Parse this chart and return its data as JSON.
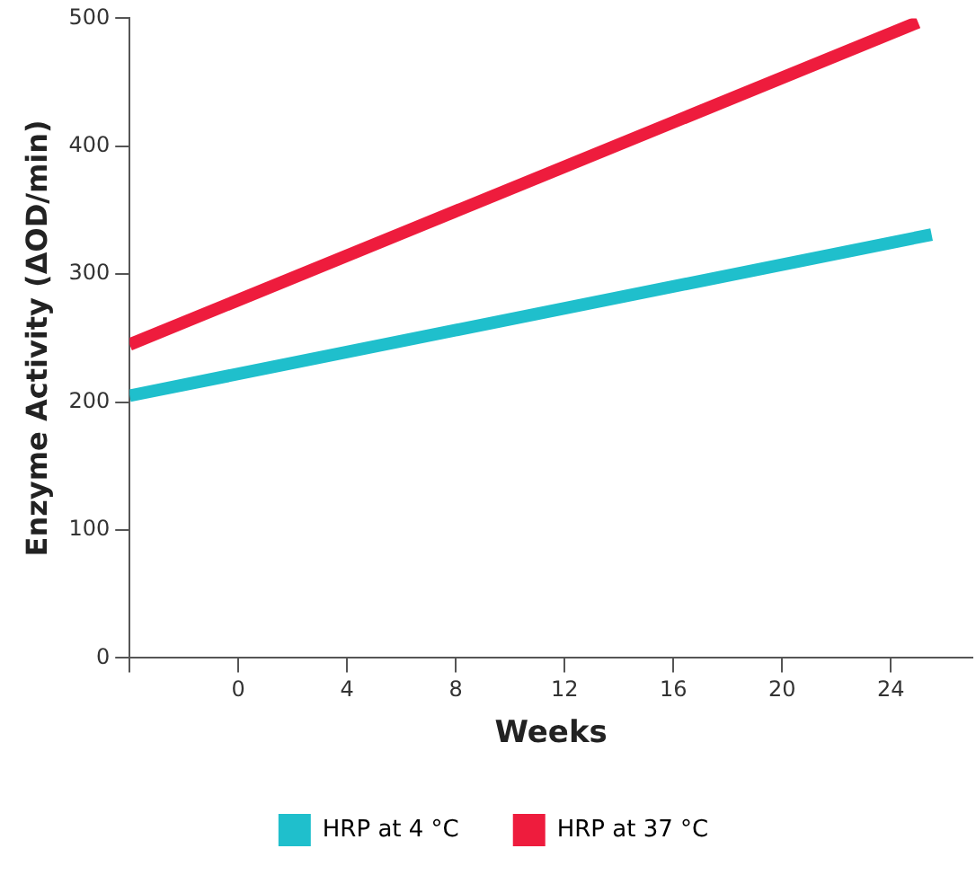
{
  "chart_data": {
    "type": "line",
    "xlabel": "Weeks",
    "ylabel": "Enzyme Activity (ΔOD/min)",
    "xlim": [
      -4,
      27
    ],
    "xticks": [
      {
        "value": -4,
        "label": null
      },
      0,
      4,
      8,
      12,
      16,
      20,
      24
    ],
    "ylim": [
      0,
      500
    ],
    "yticks": [
      0,
      100,
      200,
      300,
      400,
      500
    ],
    "grid": false,
    "legend": "bottom",
    "marker": "none",
    "line_style": "solid",
    "series": [
      {
        "name": "HRP at 4 °C",
        "color": "#1fbfcc",
        "x": [
          -4,
          25.5
        ],
        "values": [
          205,
          331
        ]
      },
      {
        "name": "HRP at 37 °C",
        "color": "#ee1c3d",
        "x": [
          -4,
          25
        ],
        "values": [
          245,
          497
        ]
      }
    ]
  }
}
